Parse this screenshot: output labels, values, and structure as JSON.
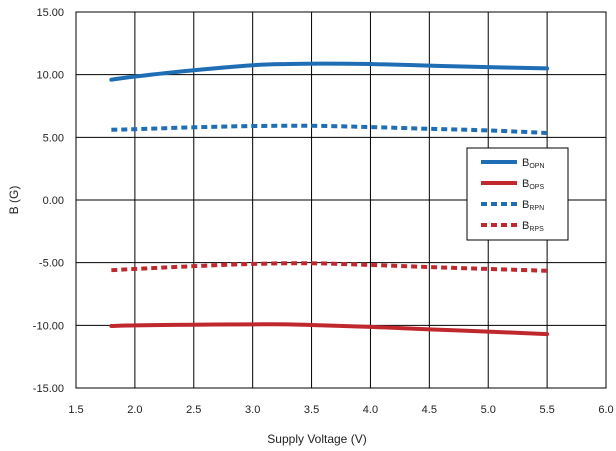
{
  "chart_data": {
    "type": "line",
    "title": "",
    "xlabel": "Supply Voltage (V)",
    "ylabel": "B (G)",
    "xlim": [
      1.5,
      6.0
    ],
    "ylim": [
      -15,
      15
    ],
    "x_ticks": [
      1.5,
      2.0,
      2.5,
      3.0,
      3.5,
      4.0,
      4.5,
      5.0,
      5.5,
      6.0
    ],
    "x_tick_labels": [
      "1.5",
      "2.0",
      "2.5",
      "3.0",
      "3.5",
      "4.0",
      "4.5",
      "5.0",
      "5.5",
      "6.0"
    ],
    "y_ticks": [
      -15,
      -10,
      -5,
      0,
      5,
      10,
      15
    ],
    "y_tick_labels": [
      "-15.00",
      "-10.00",
      "-5.00",
      "0.00",
      "5.00",
      "10.00",
      "15.00"
    ],
    "grid": true,
    "legend_position": "right",
    "series": [
      {
        "name_main": "B",
        "name_sub": "OPN",
        "color": "#1f6eb5",
        "style": "solid",
        "x": [
          1.8,
          2.0,
          2.5,
          3.0,
          3.3,
          3.6,
          4.0,
          4.5,
          5.0,
          5.5
        ],
        "y": [
          9.6,
          9.85,
          10.35,
          10.75,
          10.85,
          10.88,
          10.85,
          10.72,
          10.6,
          10.5
        ]
      },
      {
        "name_main": "B",
        "name_sub": "OPS",
        "color": "#c0282e",
        "style": "solid",
        "x": [
          1.8,
          2.0,
          2.5,
          3.0,
          3.3,
          3.6,
          4.0,
          4.5,
          5.0,
          5.5
        ],
        "y": [
          -10.05,
          -10.0,
          -9.95,
          -9.92,
          -9.92,
          -10.0,
          -10.12,
          -10.32,
          -10.5,
          -10.7
        ]
      },
      {
        "name_main": "B",
        "name_sub": "RPN",
        "color": "#1f6eb5",
        "style": "dashed",
        "x": [
          1.8,
          2.0,
          2.5,
          3.0,
          3.5,
          4.0,
          4.5,
          5.0,
          5.5
        ],
        "y": [
          5.6,
          5.65,
          5.8,
          5.9,
          5.92,
          5.82,
          5.68,
          5.55,
          5.35
        ]
      },
      {
        "name_main": "B",
        "name_sub": "RPS",
        "color": "#c0282e",
        "style": "dashed",
        "x": [
          1.8,
          2.0,
          2.5,
          3.0,
          3.5,
          4.0,
          4.5,
          5.0,
          5.5
        ],
        "y": [
          -5.6,
          -5.5,
          -5.28,
          -5.1,
          -5.05,
          -5.18,
          -5.35,
          -5.5,
          -5.65
        ]
      }
    ]
  }
}
